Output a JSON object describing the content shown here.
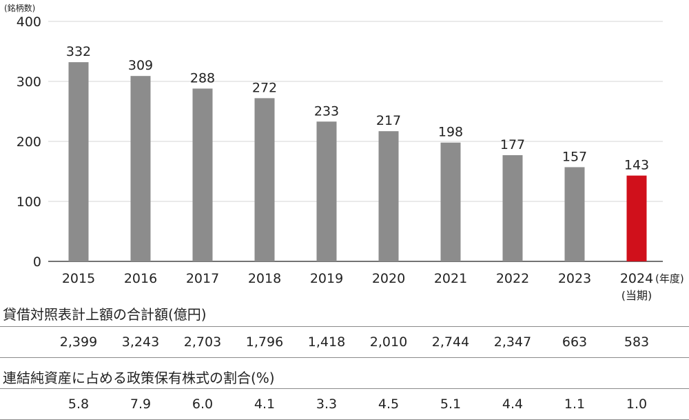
{
  "chart_data": {
    "type": "bar",
    "unit_label": "(銘柄数)",
    "categories": [
      "2015",
      "2016",
      "2017",
      "2018",
      "2019",
      "2020",
      "2021",
      "2022",
      "2023",
      "2024"
    ],
    "x_suffix": "(年度)",
    "last_category_note": "(当期)",
    "values": [
      332,
      309,
      288,
      272,
      233,
      217,
      198,
      177,
      157,
      143
    ],
    "ylim": [
      0,
      400
    ],
    "yticks": [
      0,
      100,
      200,
      300,
      400
    ],
    "grid": true,
    "colors": {
      "bar": "#8c8c8c",
      "highlight": "#d0101b",
      "grid": "#d4d4d4",
      "axis": "#444444"
    },
    "highlight_index": 9
  },
  "tables": [
    {
      "title": "貸借対照表計上額の合計額(億円)",
      "values": [
        "2,399",
        "3,243",
        "2,703",
        "1,796",
        "1,418",
        "2,010",
        "2,744",
        "2,347",
        "663",
        "583"
      ]
    },
    {
      "title": "連結純資産に占める政策保有株式の割合(%)",
      "values": [
        "5.8",
        "7.9",
        "6.0",
        "4.1",
        "3.3",
        "4.5",
        "5.1",
        "4.4",
        "1.1",
        "1.0"
      ]
    }
  ]
}
